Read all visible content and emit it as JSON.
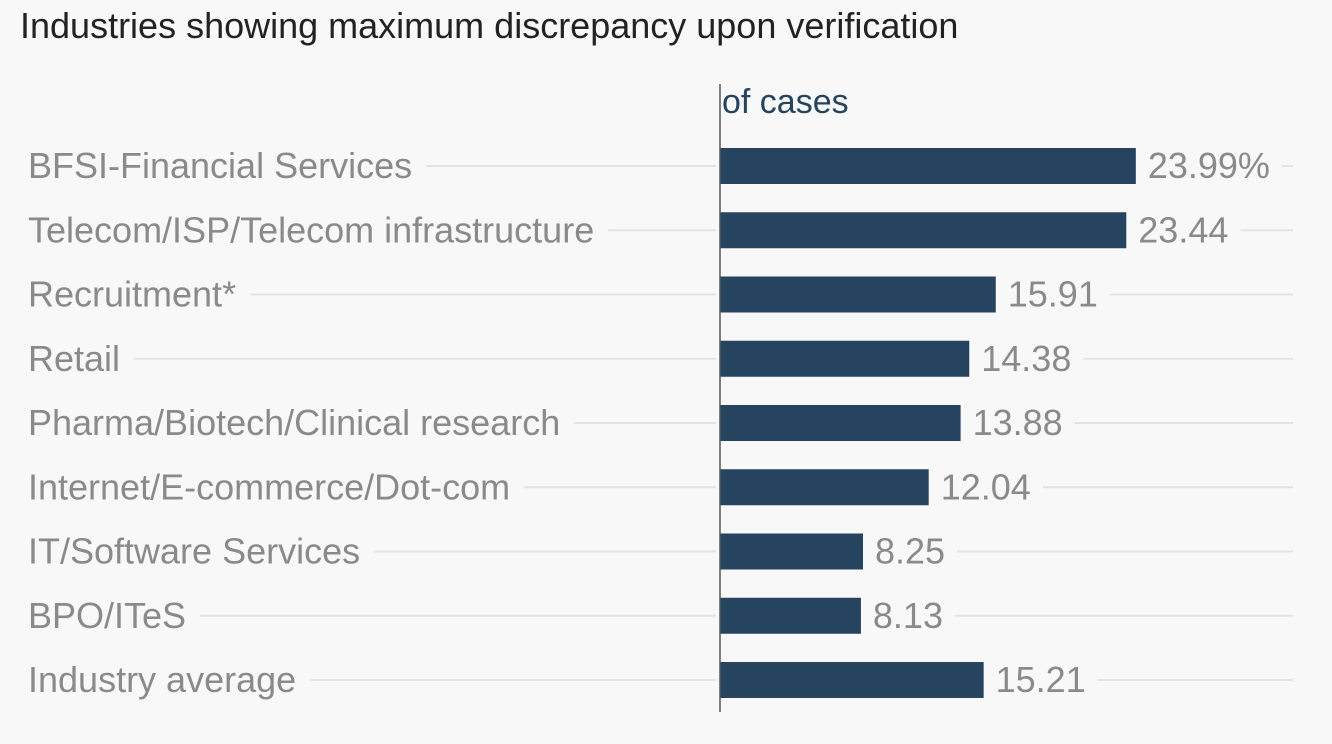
{
  "chart_data": {
    "type": "bar",
    "orientation": "horizontal",
    "title": "Industries showing maximum discrepancy upon verification",
    "series_label": "of cases",
    "value_suffix_first": "%",
    "categories": [
      "BFSI-Financial Services",
      "Telecom/ISP/Telecom infrastructure",
      "Recruitment*",
      "Retail",
      "Pharma/Biotech/Clinical research",
      "Internet/E-commerce/Dot-com",
      "IT/Software Services",
      "BPO/ITeS",
      "Industry average"
    ],
    "values": [
      23.99,
      23.44,
      15.91,
      14.38,
      13.88,
      12.04,
      8.25,
      8.13,
      15.21
    ],
    "value_labels": [
      "23.99%",
      "23.44",
      "15.91",
      "14.38",
      "13.88",
      "12.04",
      "8.25",
      "8.13",
      "15.21"
    ],
    "xlim": [
      0,
      24
    ],
    "grid": true,
    "colors": {
      "bar": "#26445f",
      "axis_title": "#26445f",
      "labels": "#8a8a8a",
      "gridline": "#e3e3e3",
      "baseline": "#555555"
    }
  }
}
